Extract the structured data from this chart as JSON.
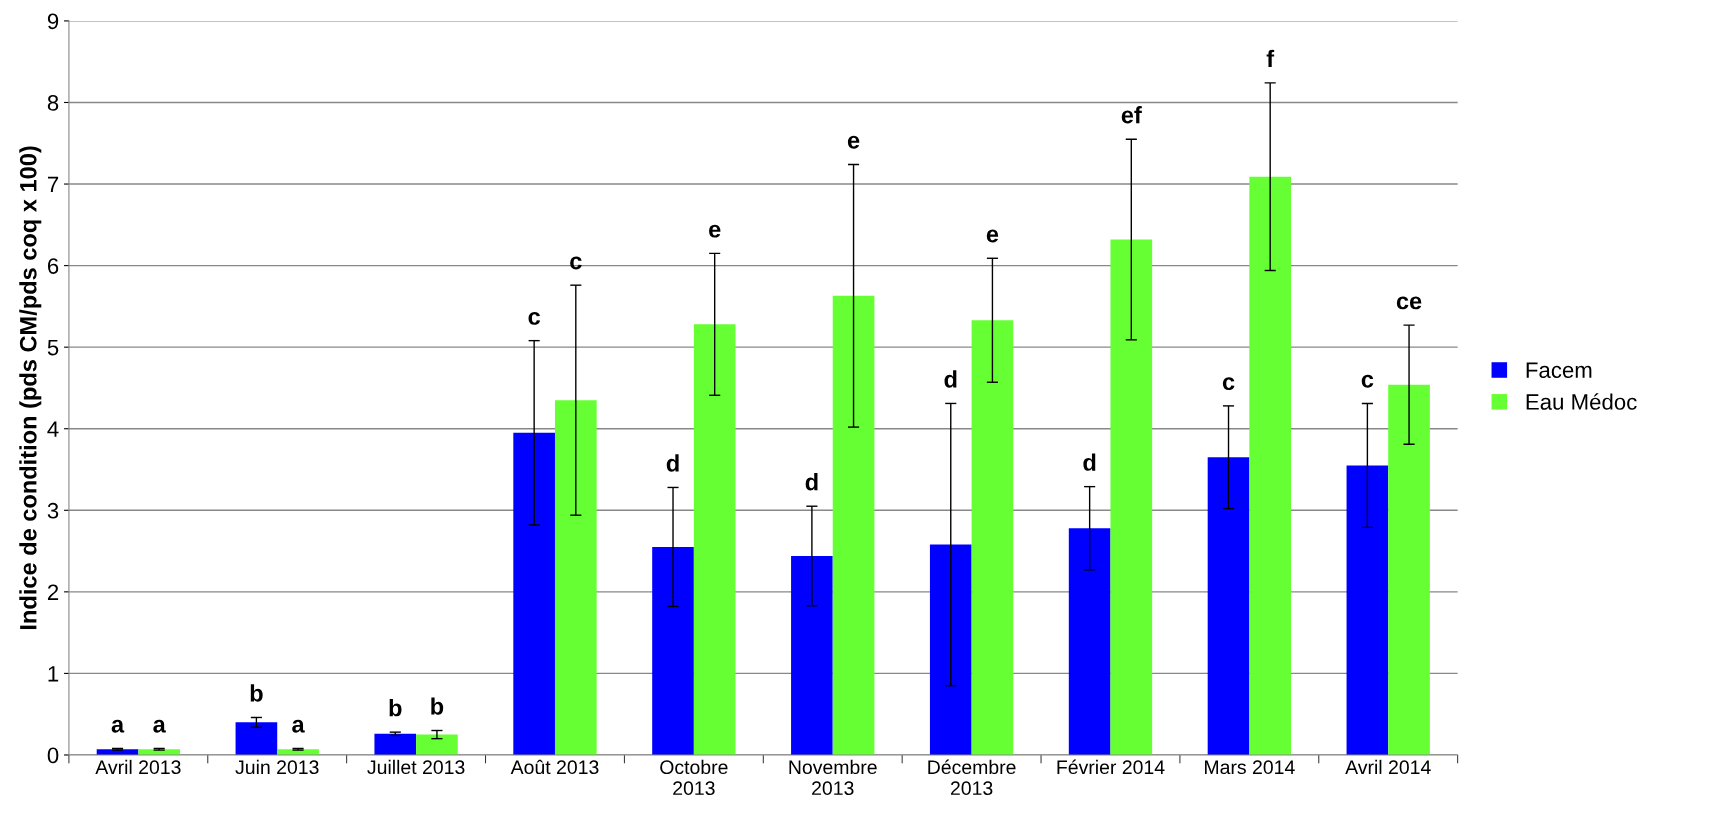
{
  "chart_data": {
    "type": "bar",
    "ylabel": "Indice de condition (pds CM/pds coq x 100)",
    "categories": [
      "Avril 2013",
      "Juin 2013",
      "Juillet 2013",
      "Août 2013",
      "Octobre 2013",
      "Novembre 2013",
      "Décembre 2013",
      "Février 2014",
      "Mars 2014",
      "Avril 2014"
    ],
    "series": [
      {
        "name": "Facem",
        "color": "#0000ff",
        "values": [
          0.07,
          0.4,
          0.26,
          3.95,
          2.55,
          2.44,
          2.58,
          2.78,
          3.65,
          3.55
        ],
        "errors": [
          0.01,
          0.06,
          0.02,
          1.13,
          0.73,
          0.61,
          1.73,
          0.51,
          0.63,
          0.76
        ]
      },
      {
        "name": "Eau Médoc",
        "color": "#66ff33",
        "values": [
          0.07,
          0.07,
          0.25,
          4.35,
          5.28,
          5.63,
          5.33,
          6.32,
          7.09,
          4.54
        ],
        "errors": [
          0.01,
          0.01,
          0.05,
          1.41,
          0.87,
          1.61,
          0.76,
          1.23,
          1.15,
          0.73
        ]
      }
    ],
    "annotations": [
      "a",
      "a",
      "b",
      "a",
      "b",
      "b",
      "c",
      "c",
      "d",
      "e",
      "d",
      "e",
      "d",
      "e",
      "d",
      "ef",
      "c",
      "f",
      "c",
      "ce"
    ],
    "ylim": [
      0,
      9
    ],
    "yticks": [
      0,
      1,
      2,
      3,
      4,
      5,
      6,
      7,
      8,
      9
    ],
    "grid": "y",
    "legend": "right"
  }
}
